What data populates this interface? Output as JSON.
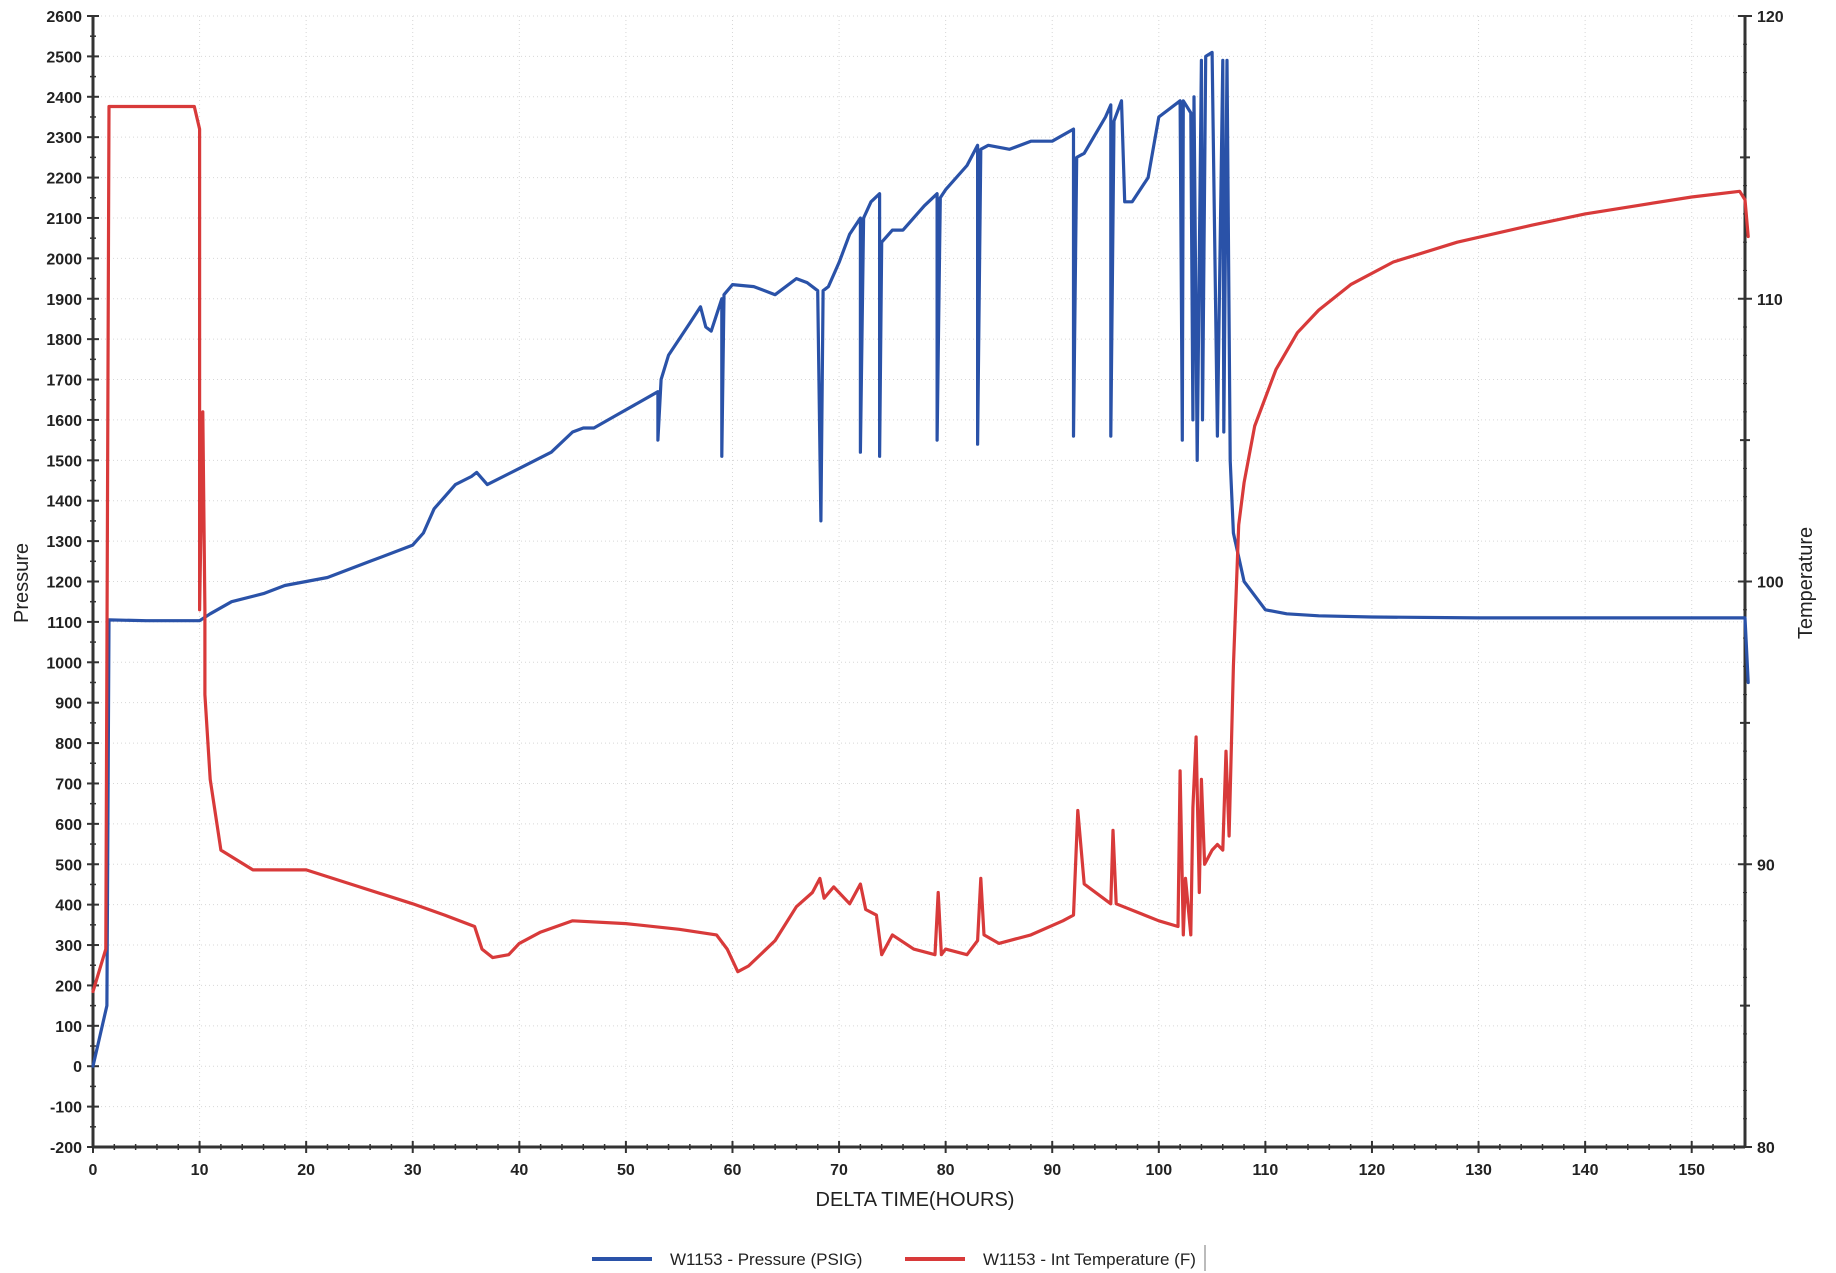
{
  "chart_data": {
    "type": "line",
    "xlabel": "DELTA TIME(HOURS)",
    "ylabel_left": "Pressure",
    "ylabel_right": "Temperature",
    "xlim": [
      0,
      155
    ],
    "ylim_left": [
      -200,
      2600
    ],
    "ylim_right": [
      80,
      120
    ],
    "x_ticks": [
      0,
      10,
      20,
      30,
      40,
      50,
      60,
      70,
      80,
      90,
      100,
      110,
      120,
      130,
      140,
      150
    ],
    "y_left_ticks": [
      -200,
      -100,
      0,
      100,
      200,
      300,
      400,
      500,
      600,
      700,
      800,
      900,
      1000,
      1100,
      1200,
      1300,
      1400,
      1500,
      1600,
      1700,
      1800,
      1900,
      2000,
      2100,
      2200,
      2300,
      2400,
      2500,
      2600
    ],
    "y_right_ticks": [
      80,
      90,
      100,
      110,
      120
    ],
    "grid": true,
    "legend_position": "bottom-center",
    "series": [
      {
        "name": "W1153 - Pressure (PSIG)",
        "axis": "left",
        "color": "#2a52a8",
        "x": [
          0,
          1.3,
          1.5,
          5,
          10,
          11,
          13,
          16,
          18,
          22,
          26,
          30,
          31,
          32,
          34,
          35.5,
          36,
          37,
          40,
          43,
          45,
          46,
          47,
          49,
          53,
          53,
          53.3,
          54,
          56,
          57,
          57.5,
          58,
          59,
          59,
          59.2,
          60,
          62,
          64,
          66,
          67,
          68,
          68.3,
          68.5,
          69,
          70,
          71,
          72,
          72,
          72.3,
          73,
          73.8,
          73.8,
          74,
          75,
          76,
          78,
          79.2,
          79.2,
          79.5,
          80,
          82,
          83,
          83,
          83.3,
          84,
          86,
          88,
          90,
          92,
          92,
          92.3,
          93,
          95,
          95.5,
          95.5,
          95.8,
          96.5,
          96.8,
          97.5,
          99,
          100,
          102,
          102.2,
          102.3,
          103,
          103.2,
          103.3,
          103.6,
          104,
          104.1,
          104.4,
          105,
          105.5,
          106,
          106.1,
          106.4,
          106.7,
          107,
          108,
          110,
          112,
          115,
          120,
          130,
          140,
          150,
          155,
          155.3
        ],
        "y": [
          0,
          150,
          1105,
          1103,
          1103,
          1120,
          1150,
          1170,
          1190,
          1210,
          1250,
          1290,
          1320,
          1380,
          1440,
          1460,
          1470,
          1440,
          1480,
          1520,
          1570,
          1580,
          1580,
          1610,
          1670,
          1550,
          1700,
          1760,
          1840,
          1880,
          1830,
          1820,
          1900,
          1510,
          1910,
          1935,
          1930,
          1910,
          1950,
          1940,
          1920,
          1350,
          1920,
          1930,
          1990,
          2060,
          2100,
          1520,
          2100,
          2140,
          2160,
          1510,
          2040,
          2070,
          2070,
          2130,
          2160,
          1550,
          2150,
          2170,
          2230,
          2280,
          1540,
          2270,
          2280,
          2270,
          2290,
          2290,
          2320,
          1560,
          2250,
          2260,
          2350,
          2380,
          1560,
          2340,
          2390,
          2140,
          2140,
          2200,
          2350,
          2390,
          1550,
          2390,
          2360,
          1600,
          2400,
          1500,
          2490,
          1600,
          2500,
          2510,
          1560,
          2490,
          1570,
          2490,
          1500,
          1320,
          1200,
          1130,
          1120,
          1115,
          1112,
          1110,
          1110,
          1110,
          1110,
          950
        ]
      },
      {
        "name": "W1153 - Int Temperature (F)",
        "axis": "right",
        "color": "#d83a3a",
        "x": [
          0,
          1.2,
          1.5,
          5,
          9.5,
          10,
          10,
          10.3,
          10.5,
          10.5,
          11,
          12,
          15,
          20,
          25,
          30,
          33,
          35.8,
          36.5,
          37.5,
          39,
          40,
          42,
          45,
          50,
          55,
          58.5,
          59.5,
          60.5,
          61.5,
          64,
          66,
          67.5,
          68.2,
          68.6,
          69.5,
          71,
          72,
          72.5,
          73.5,
          74,
          75,
          77,
          79,
          79.3,
          79.6,
          80,
          82,
          83,
          83.3,
          83.6,
          85,
          88,
          91,
          92,
          92.4,
          93,
          95.5,
          95.7,
          96,
          100,
          101.8,
          102,
          102.3,
          102.5,
          103,
          103.2,
          103.5,
          103.8,
          104,
          104.3,
          105,
          105.5,
          106,
          106.3,
          106.6,
          107,
          107.5,
          108,
          109,
          111,
          113,
          115,
          118,
          122,
          128,
          135,
          140,
          145,
          150,
          154.5,
          155,
          155.3
        ],
        "y": [
          85.5,
          87,
          116.8,
          116.8,
          116.8,
          116,
          99,
          106,
          99,
          96,
          93,
          90.5,
          89.8,
          89.8,
          89.2,
          88.6,
          88.2,
          87.8,
          87,
          86.7,
          86.8,
          87.2,
          87.6,
          88,
          87.9,
          87.7,
          87.5,
          87,
          86.2,
          86.4,
          87.3,
          88.5,
          89,
          89.5,
          88.8,
          89.2,
          88.6,
          89.3,
          88.4,
          88.2,
          86.8,
          87.5,
          87,
          86.8,
          89,
          86.8,
          87,
          86.8,
          87.3,
          89.5,
          87.5,
          87.2,
          87.5,
          88,
          88.2,
          91.9,
          89.3,
          88.6,
          91.2,
          88.6,
          88,
          87.8,
          93.3,
          87.5,
          89.5,
          87.5,
          92,
          94.5,
          89,
          93,
          90,
          90.5,
          90.7,
          90.5,
          94,
          91,
          97,
          102,
          103.5,
          105.5,
          107.5,
          108.8,
          109.6,
          110.5,
          111.3,
          112,
          112.6,
          113,
          113.3,
          113.6,
          113.8,
          113.5,
          112.2
        ]
      }
    ]
  }
}
